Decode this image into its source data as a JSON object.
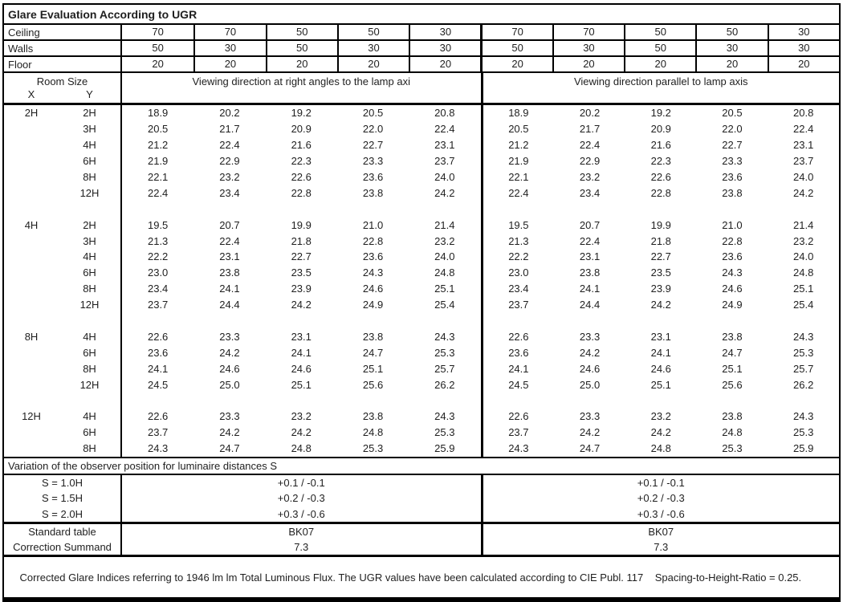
{
  "title": "Glare Evaluation According to UGR",
  "surface_reflectances": {
    "rows": [
      {
        "label": "Ceiling",
        "values": [
          "70",
          "70",
          "50",
          "50",
          "30",
          "70",
          "70",
          "50",
          "50",
          "30"
        ]
      },
      {
        "label": "Walls",
        "values": [
          "50",
          "30",
          "50",
          "30",
          "30",
          "50",
          "30",
          "50",
          "30",
          "30"
        ]
      },
      {
        "label": "Floor",
        "values": [
          "20",
          "20",
          "20",
          "20",
          "20",
          "20",
          "20",
          "20",
          "20",
          "20"
        ]
      }
    ]
  },
  "table_header": {
    "room_size_label": "Room Size",
    "x_label": "X",
    "y_label": "Y",
    "left_title": "Viewing direction at right angles to the lamp axi",
    "right_title": "Viewing direction parallel to lamp axis"
  },
  "ugr_blocks": [
    {
      "x": "2H",
      "rows": [
        {
          "y": "2H",
          "left": [
            "18.9",
            "20.2",
            "19.2",
            "20.5",
            "20.8"
          ],
          "right": [
            "18.9",
            "20.2",
            "19.2",
            "20.5",
            "20.8"
          ]
        },
        {
          "y": "3H",
          "left": [
            "20.5",
            "21.7",
            "20.9",
            "22.0",
            "22.4"
          ],
          "right": [
            "20.5",
            "21.7",
            "20.9",
            "22.0",
            "22.4"
          ]
        },
        {
          "y": "4H",
          "left": [
            "21.2",
            "22.4",
            "21.6",
            "22.7",
            "23.1"
          ],
          "right": [
            "21.2",
            "22.4",
            "21.6",
            "22.7",
            "23.1"
          ]
        },
        {
          "y": "6H",
          "left": [
            "21.9",
            "22.9",
            "22.3",
            "23.3",
            "23.7"
          ],
          "right": [
            "21.9",
            "22.9",
            "22.3",
            "23.3",
            "23.7"
          ]
        },
        {
          "y": "8H",
          "left": [
            "22.1",
            "23.2",
            "22.6",
            "23.6",
            "24.0"
          ],
          "right": [
            "22.1",
            "23.2",
            "22.6",
            "23.6",
            "24.0"
          ]
        },
        {
          "y": "12H",
          "left": [
            "22.4",
            "23.4",
            "22.8",
            "23.8",
            "24.2"
          ],
          "right": [
            "22.4",
            "23.4",
            "22.8",
            "23.8",
            "24.2"
          ]
        }
      ]
    },
    {
      "x": "4H",
      "rows": [
        {
          "y": "2H",
          "left": [
            "19.5",
            "20.7",
            "19.9",
            "21.0",
            "21.4"
          ],
          "right": [
            "19.5",
            "20.7",
            "19.9",
            "21.0",
            "21.4"
          ]
        },
        {
          "y": "3H",
          "left": [
            "21.3",
            "22.4",
            "21.8",
            "22.8",
            "23.2"
          ],
          "right": [
            "21.3",
            "22.4",
            "21.8",
            "22.8",
            "23.2"
          ]
        },
        {
          "y": "4H",
          "left": [
            "22.2",
            "23.1",
            "22.7",
            "23.6",
            "24.0"
          ],
          "right": [
            "22.2",
            "23.1",
            "22.7",
            "23.6",
            "24.0"
          ]
        },
        {
          "y": "6H",
          "left": [
            "23.0",
            "23.8",
            "23.5",
            "24.3",
            "24.8"
          ],
          "right": [
            "23.0",
            "23.8",
            "23.5",
            "24.3",
            "24.8"
          ]
        },
        {
          "y": "8H",
          "left": [
            "23.4",
            "24.1",
            "23.9",
            "24.6",
            "25.1"
          ],
          "right": [
            "23.4",
            "24.1",
            "23.9",
            "24.6",
            "25.1"
          ]
        },
        {
          "y": "12H",
          "left": [
            "23.7",
            "24.4",
            "24.2",
            "24.9",
            "25.4"
          ],
          "right": [
            "23.7",
            "24.4",
            "24.2",
            "24.9",
            "25.4"
          ]
        }
      ]
    },
    {
      "x": "8H",
      "rows": [
        {
          "y": "4H",
          "left": [
            "22.6",
            "23.3",
            "23.1",
            "23.8",
            "24.3"
          ],
          "right": [
            "22.6",
            "23.3",
            "23.1",
            "23.8",
            "24.3"
          ]
        },
        {
          "y": "6H",
          "left": [
            "23.6",
            "24.2",
            "24.1",
            "24.7",
            "25.3"
          ],
          "right": [
            "23.6",
            "24.2",
            "24.1",
            "24.7",
            "25.3"
          ]
        },
        {
          "y": "8H",
          "left": [
            "24.1",
            "24.6",
            "24.6",
            "25.1",
            "25.7"
          ],
          "right": [
            "24.1",
            "24.6",
            "24.6",
            "25.1",
            "25.7"
          ]
        },
        {
          "y": "12H",
          "left": [
            "24.5",
            "25.0",
            "25.1",
            "25.6",
            "26.2"
          ],
          "right": [
            "24.5",
            "25.0",
            "25.1",
            "25.6",
            "26.2"
          ]
        }
      ]
    },
    {
      "x": "12H",
      "rows": [
        {
          "y": "4H",
          "left": [
            "22.6",
            "23.3",
            "23.2",
            "23.8",
            "24.3"
          ],
          "right": [
            "22.6",
            "23.3",
            "23.2",
            "23.8",
            "24.3"
          ]
        },
        {
          "y": "6H",
          "left": [
            "23.7",
            "24.2",
            "24.2",
            "24.8",
            "25.3"
          ],
          "right": [
            "23.7",
            "24.2",
            "24.2",
            "24.8",
            "25.3"
          ]
        },
        {
          "y": "8H",
          "left": [
            "24.3",
            "24.7",
            "24.8",
            "25.3",
            "25.9"
          ],
          "right": [
            "24.3",
            "24.7",
            "24.8",
            "25.3",
            "25.9"
          ]
        }
      ]
    }
  ],
  "variation_section": {
    "heading": "Variation of the observer position for luminaire distances S",
    "rows": [
      {
        "label": "S = 1.0H",
        "left": "+0.1 / -0.1",
        "right": "+0.1 / -0.1"
      },
      {
        "label": "S = 1.5H",
        "left": "+0.2 / -0.3",
        "right": "+0.2 / -0.3"
      },
      {
        "label": "S = 2.0H",
        "left": "+0.3 / -0.6",
        "right": "+0.3 / -0.6"
      }
    ]
  },
  "summary_section": {
    "rows": [
      {
        "label": "Standard table",
        "left": "BK07",
        "right": "BK07"
      },
      {
        "label": "Correction Summand",
        "left": "7.3",
        "right": "7.3"
      }
    ]
  },
  "footer": {
    "text": "Corrected Glare Indices referring to 1946 lm lm Total Luminous Flux. The UGR values have been calculated according to CIE Publ. 117    Spacing-to-Height-Ratio = 0.25."
  },
  "colors": {
    "background": "#ffffff",
    "border": "#000000",
    "text": "#1f1f1f"
  }
}
